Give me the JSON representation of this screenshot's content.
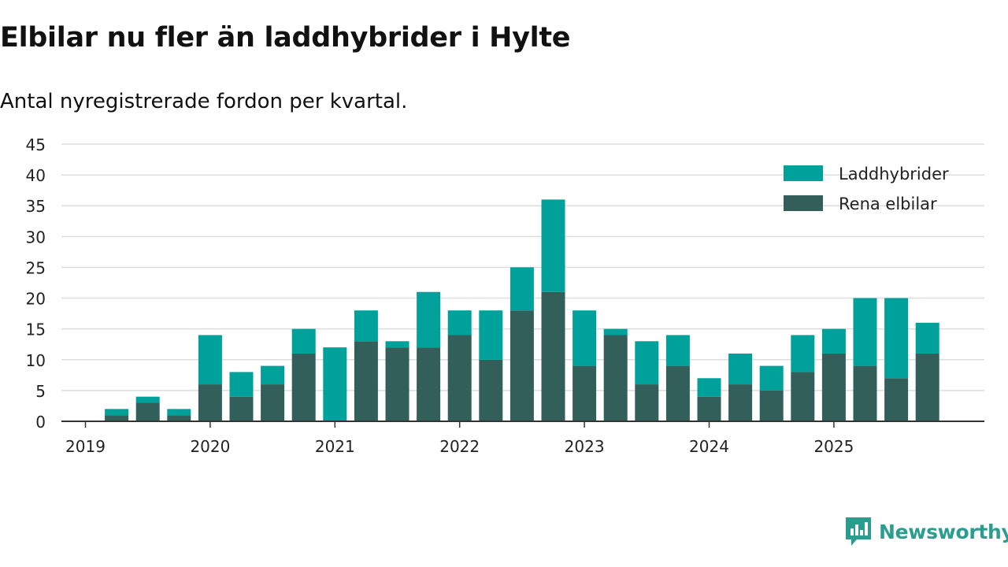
{
  "header": {
    "title": "Elbilar nu fler än laddhybrider i Hylte",
    "subtitle": "Antal nyregistrerade fordon per kvartal."
  },
  "brand": {
    "name": "Newsworthy",
    "icon": "newsworthy-logo-icon"
  },
  "colors": {
    "laddhybrider": "#00a19a",
    "rena_elbilar": "#335f5b",
    "grid": "#dddddd",
    "axis": "#333333",
    "text": "#222222",
    "brand": "#2a9d8f"
  },
  "chart_data": {
    "type": "bar",
    "stacked": true,
    "title": "Elbilar nu fler än laddhybrider i Hylte",
    "subtitle": "Antal nyregistrerade fordon per kvartal.",
    "xlabel": "",
    "ylabel": "",
    "ylim": [
      0,
      45
    ],
    "yticks": [
      0,
      5,
      10,
      15,
      20,
      25,
      30,
      35,
      40,
      45
    ],
    "year_ticks": [
      "2019",
      "2020",
      "2021",
      "2022",
      "2023",
      "2024",
      "2025"
    ],
    "grid": true,
    "legend_position": "top-right",
    "categories": [
      "2019 Q1",
      "2019 Q2",
      "2019 Q3",
      "2019 Q4",
      "2020 Q1",
      "2020 Q2",
      "2020 Q3",
      "2020 Q4",
      "2021 Q1",
      "2021 Q2",
      "2021 Q3",
      "2021 Q4",
      "2022 Q1",
      "2022 Q2",
      "2022 Q3",
      "2022 Q4",
      "2023 Q1",
      "2023 Q2",
      "2023 Q3",
      "2023 Q4",
      "2024 Q1",
      "2024 Q2",
      "2024 Q3",
      "2024 Q4",
      "2025 Q1",
      "2025 Q2",
      "2025 Q3",
      "2025 Q4"
    ],
    "series": [
      {
        "name": "Rena elbilar",
        "key": "rena_elbilar",
        "values": [
          0,
          1,
          3,
          1,
          6,
          4,
          6,
          11,
          0,
          13,
          12,
          12,
          14,
          10,
          18,
          21,
          9,
          14,
          6,
          9,
          4,
          6,
          5,
          8,
          11,
          9,
          7,
          11
        ]
      },
      {
        "name": "Laddhybrider",
        "key": "laddhybrider",
        "values": [
          0,
          1,
          1,
          1,
          8,
          4,
          3,
          4,
          12,
          5,
          1,
          9,
          4,
          8,
          7,
          15,
          9,
          1,
          7,
          5,
          3,
          5,
          4,
          6,
          4,
          11,
          13,
          5
        ]
      }
    ]
  }
}
